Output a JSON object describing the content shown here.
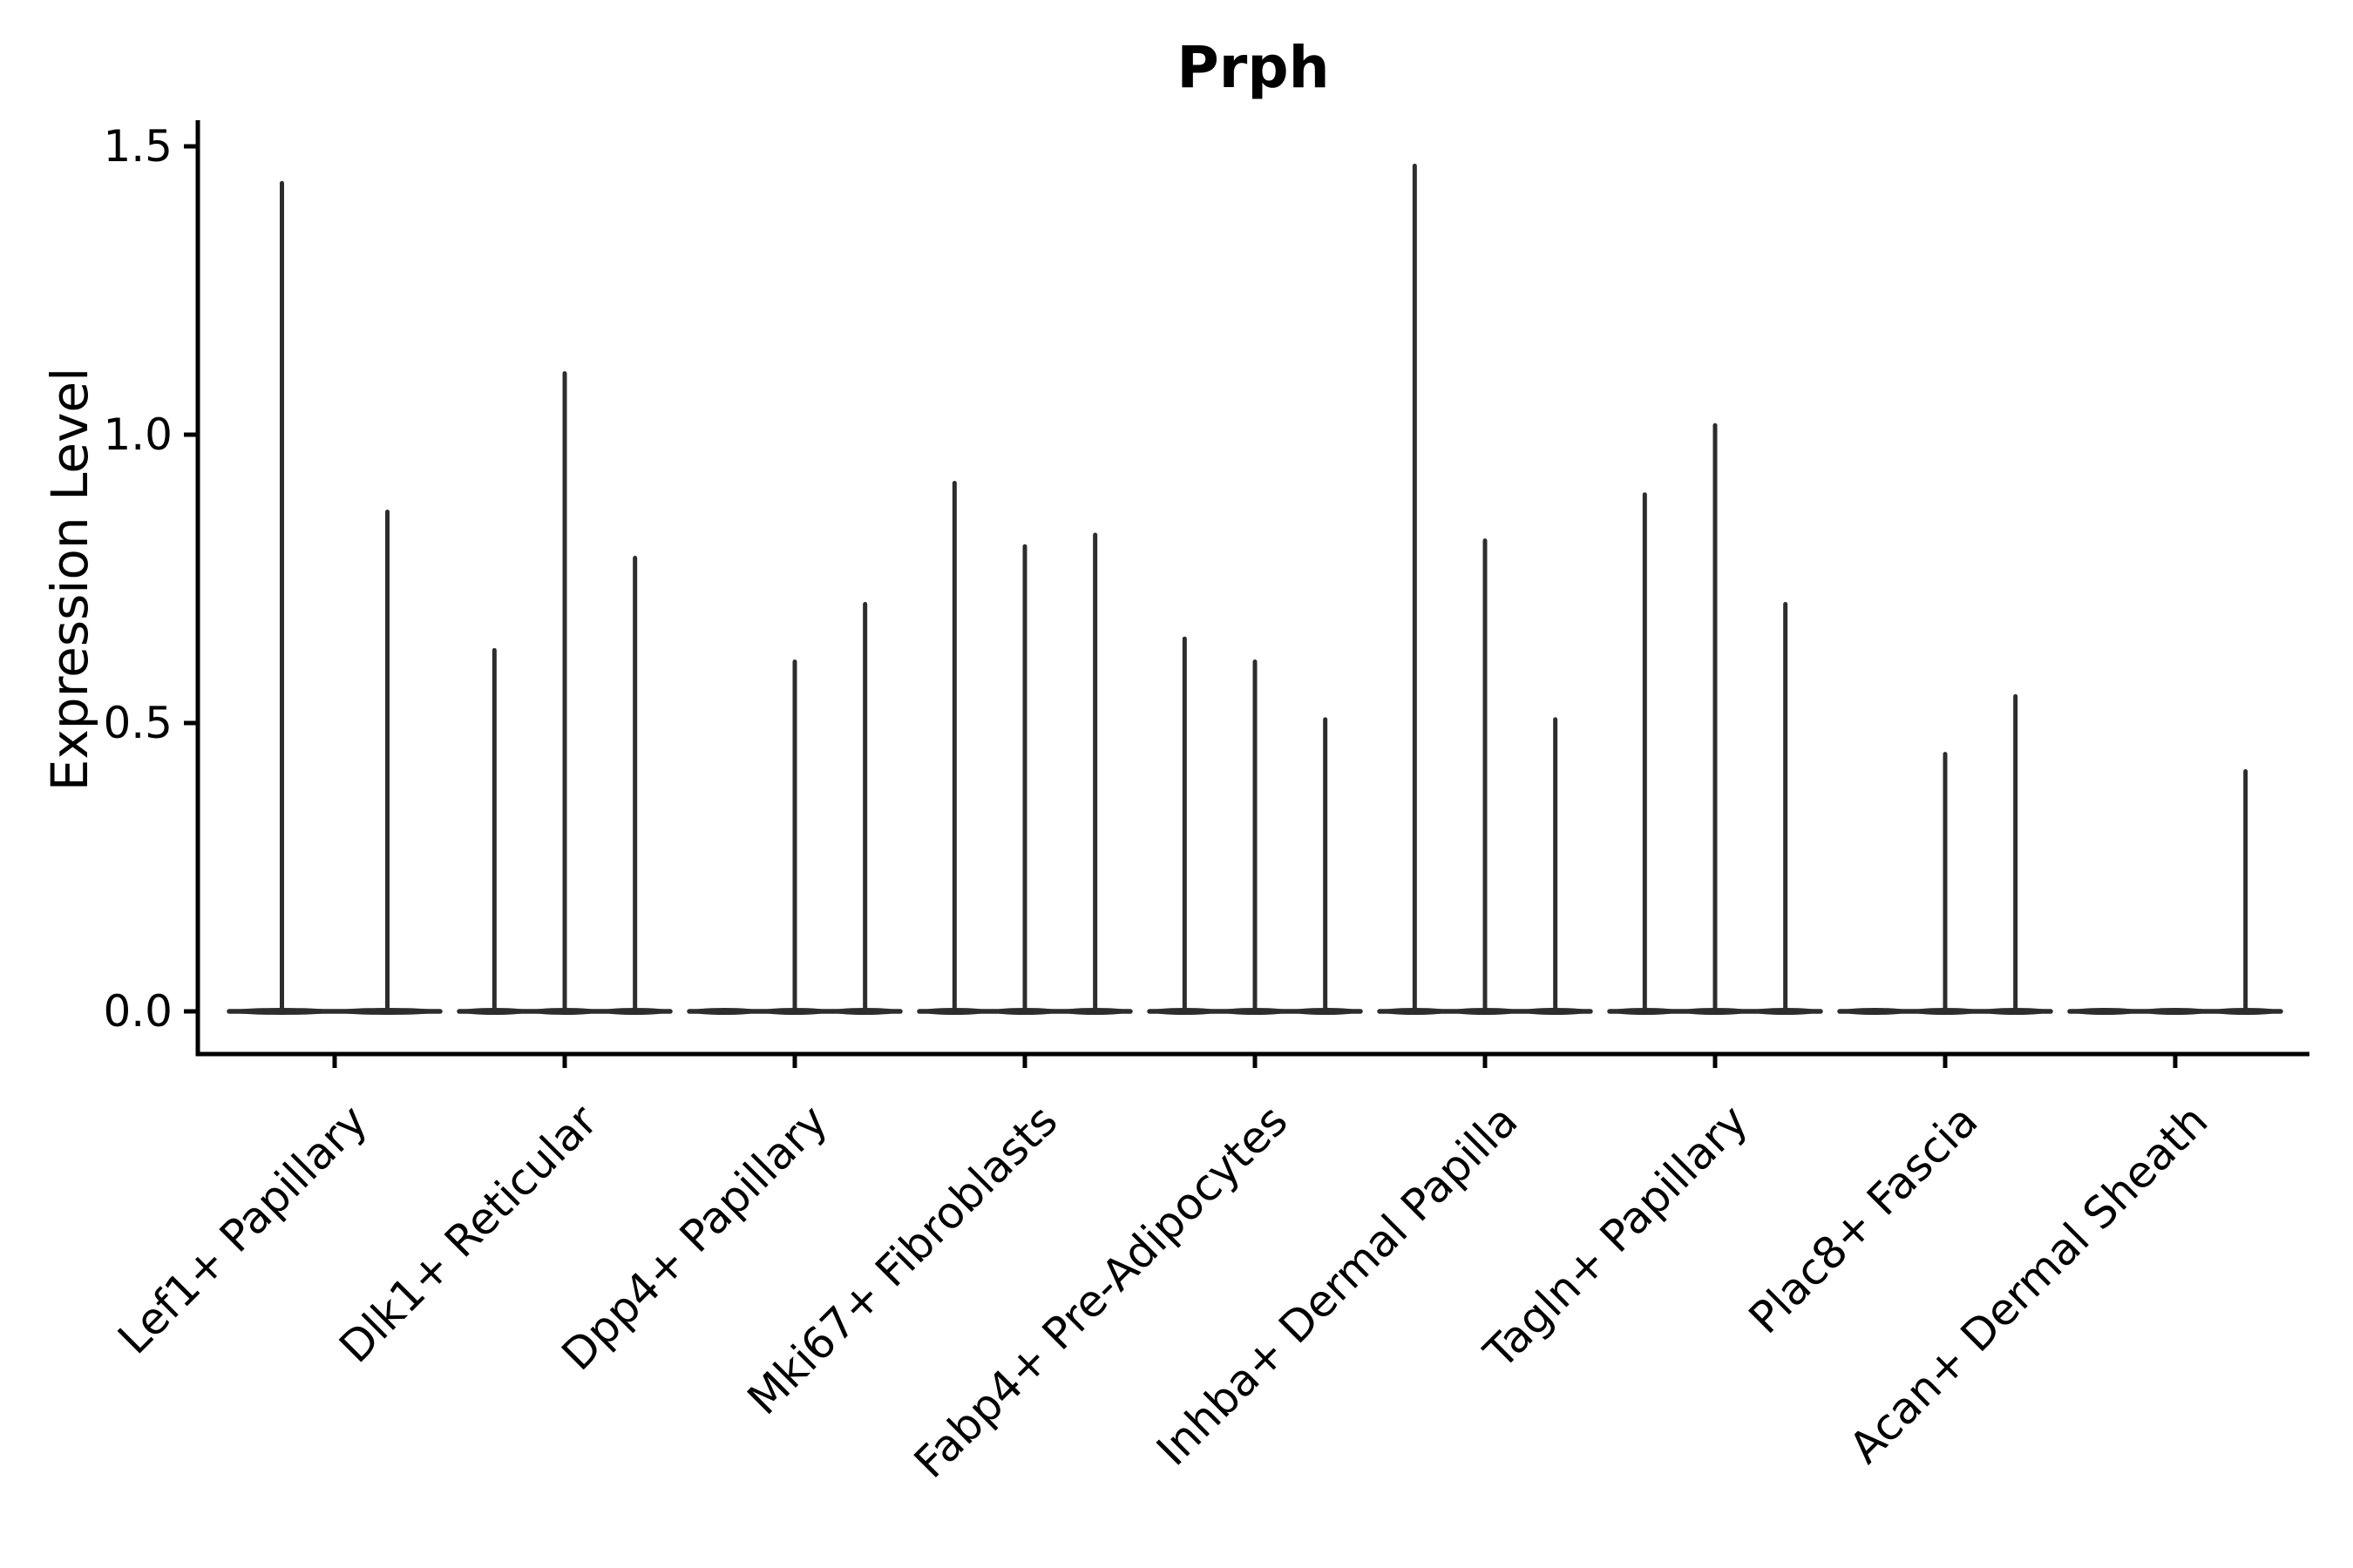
{
  "figure": {
    "background": "#ffffff"
  },
  "chart_data": {
    "type": "violin",
    "title": "Prph",
    "xlabel": "",
    "ylabel": "Expression Level",
    "ylim": [
      0,
      1.5
    ],
    "grid": false,
    "legend": "none",
    "yticks": [
      "0.0",
      "0.5",
      "1.0",
      "1.5"
    ],
    "categories": [
      "Lef1+ Papillary",
      "Dlk1+ Reticular",
      "Dpp4+ Papillary",
      "Mki67+ Fibroblasts",
      "Fabp4+ Pre-Adipocytes",
      "Inhba+ Dermal Papilla",
      "Tagln+ Papillary",
      "Plac8+ Fascia",
      "Acan+ Dermal Sheath"
    ],
    "groups": [
      {
        "category": "Lef1+ Papillary",
        "violin_maxima": [
          1.44,
          0.87
        ]
      },
      {
        "category": "Dlk1+ Reticular",
        "violin_maxima": [
          0.63,
          1.11,
          0.79
        ]
      },
      {
        "category": "Dpp4+ Papillary",
        "violin_maxima": [
          0.0,
          0.61,
          0.71
        ]
      },
      {
        "category": "Mki67+ Fibroblasts",
        "violin_maxima": [
          0.92,
          0.81,
          0.83
        ]
      },
      {
        "category": "Fabp4+ Pre-Adipocytes",
        "violin_maxima": [
          0.65,
          0.61,
          0.51
        ]
      },
      {
        "category": "Inhba+ Dermal Papilla",
        "violin_maxima": [
          1.47,
          0.82,
          0.51
        ]
      },
      {
        "category": "Tagln+ Papillary",
        "violin_maxima": [
          0.9,
          1.02,
          0.71
        ]
      },
      {
        "category": "Plac8+ Fascia",
        "violin_maxima": [
          0.0,
          0.45,
          0.55
        ]
      },
      {
        "category": "Acan+ Dermal Sheath",
        "violin_maxima": [
          0.0,
          0.0,
          0.42
        ]
      }
    ],
    "colors": {
      "violin": "#2d2d2d",
      "axis": "#000000",
      "text": "#000000",
      "background": "#ffffff"
    }
  }
}
